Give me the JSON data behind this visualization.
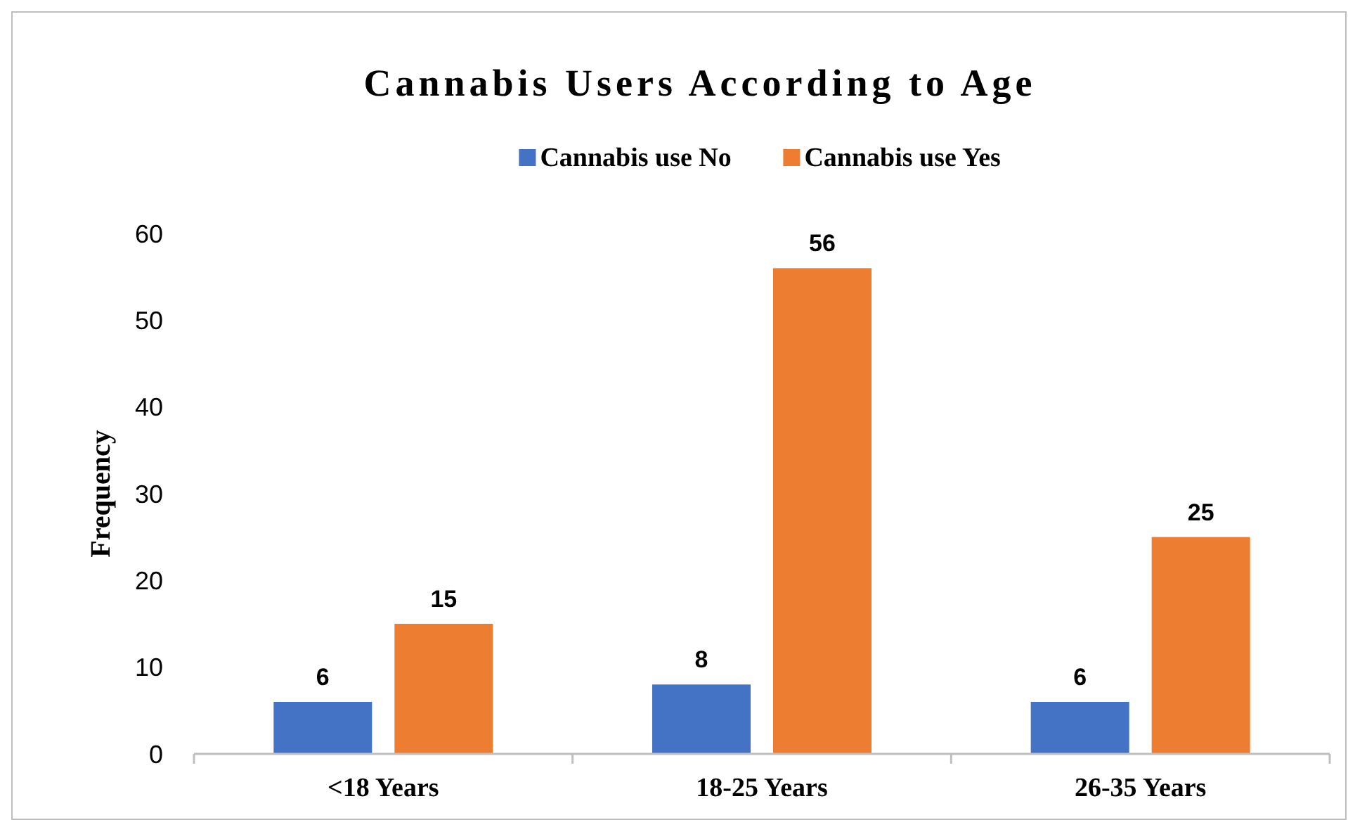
{
  "chart_data": {
    "type": "bar",
    "title": "Cannabis Users According to Age",
    "ylabel": "Frequency",
    "categories": [
      "<18 Years",
      "18-25 Years",
      "26-35 Years"
    ],
    "series": [
      {
        "name": "Cannabis use No",
        "color": "#4472c4",
        "values": [
          6,
          8,
          6
        ]
      },
      {
        "name": "Cannabis use Yes",
        "color": "#ed7d31",
        "values": [
          15,
          56,
          25
        ]
      }
    ],
    "ylim": [
      0,
      60
    ],
    "yticks": [
      0,
      10,
      20,
      30,
      40,
      50,
      60
    ],
    "data_labels": true,
    "legend": "top",
    "grid": false
  }
}
